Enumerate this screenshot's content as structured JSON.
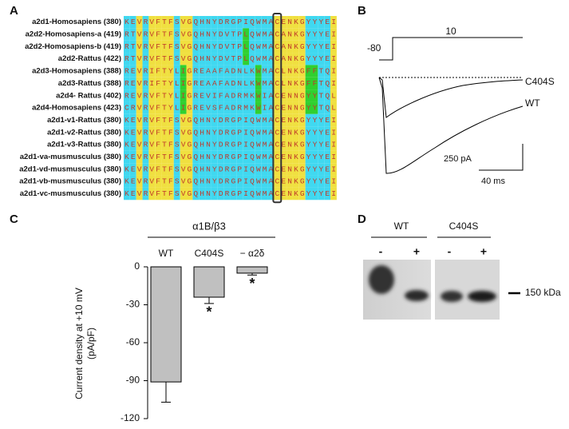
{
  "panels": {
    "A": {
      "letter": "A",
      "rows": [
        {
          "name": "a2d1-Homosapiens (380)",
          "seq": "KEVRVFTFSVGQHNYDRGPIQWMACENKGYYYEI"
        },
        {
          "name": "a2d2-Homosapiens-a (419)",
          "seq": "RTVRVFTFSVGQHNYDVTPLQWMACANKGYYYEI"
        },
        {
          "name": "a2d2-Homosapiens-b (419)",
          "seq": "RTVRVFTFSVGQHNYDVTPLQWMACANKGYYYEI"
        },
        {
          "name": "a2d2-Rattus (422)",
          "seq": "RTVRVFTFSVGQHNYDVTPLQWMACANKGYYYEI"
        },
        {
          "name": "a2d3-Homosapiens (388)",
          "seq": "REVRIFTYLIGREAAFADNLKWMACLNKGFFTQI"
        },
        {
          "name": "a2d3-Rattus (388)",
          "seq": "REVRIFTYLIGREAAFADNLKWMACLNKGFFTQI"
        },
        {
          "name": "a2d4- Rattus (402)",
          "seq": "REVRVFTYLIGREVIFADRMKWIACENNGYYTQL"
        },
        {
          "name": "a2d4-Homosapiens (423)",
          "seq": "CRVRVFTYLIGREVSFADRMKWIACENNGYYTQL"
        },
        {
          "name": "a2d1-v1-Rattus (380)",
          "seq": "KEVRVFTFSVGQHNYDRGPIQWMACENKGYYYEI"
        },
        {
          "name": "a2d1-v2-Rattus (380)",
          "seq": "KEVRVFTFSVGQHNYDRGPIQWMACENKGYYYEI"
        },
        {
          "name": "a2d1-v3-Rattus (380)",
          "seq": "KEVRVFTFSVGQHNYDRGPIQWMACENKGYYYEI"
        },
        {
          "name": "a2d1-va-musmusculus (380)",
          "seq": "KEVRVFTFSVGQHNYDRGPIQWMACENKGYYYEI"
        },
        {
          "name": "a2d1-vd-musmusculus (380)",
          "seq": "KEVRVFTFSVGQHNYDRGPIQWMACENKGYYYEI"
        },
        {
          "name": "a2d1-vb-musmusculus (380)",
          "seq": "KEVRVFTFSVGQHNYDRGPIQWMACENKGYYYEI"
        },
        {
          "name": "a2d1-vc-musmusculus (380)",
          "seq": "KEVRVFTFSVGQHNYDRGPIQWMACENKGYYYEI"
        }
      ]
    },
    "B": {
      "letter": "B",
      "holding": "-80",
      "step": "10",
      "trace_labels": [
        "C404S",
        "WT"
      ],
      "scale_current": "250 pA",
      "scale_time": "40 ms"
    },
    "D": {
      "letter": "D",
      "groups": [
        "WT",
        "C404S"
      ],
      "lanes": [
        "-",
        "+",
        "-",
        "+"
      ],
      "marker": "150 kDa"
    }
  },
  "chart_data": {
    "type": "bar",
    "panel": "C",
    "header": "α1B/β3",
    "ylabel": [
      "Current density at  +10 mV",
      "(pA/pF)"
    ],
    "categories": [
      "WT",
      "C404S",
      "− α2δ"
    ],
    "values": [
      -91,
      -24,
      -5
    ],
    "errors": [
      16,
      5,
      1.5
    ],
    "annotations": [
      "*",
      "*"
    ],
    "annotation_color": "#7b1f2a",
    "color": "#c0c0c0",
    "ylim": [
      -120,
      0
    ],
    "yticks": [
      0,
      -30,
      -60,
      -90,
      -120
    ]
  }
}
